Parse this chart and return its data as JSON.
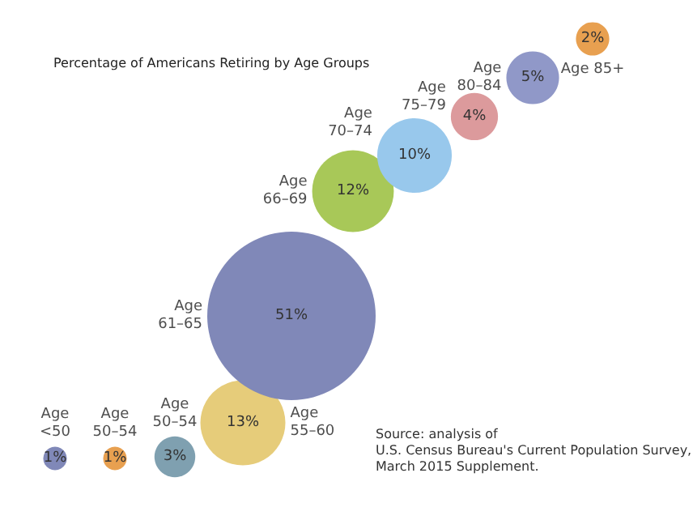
{
  "chart_data": {
    "type": "other",
    "title": "Percentage of Americans Retiring by Age Groups",
    "categories": [
      "Age\n<50",
      "Age\n50–54",
      "Age\n50–54",
      "Age\n55–60",
      "Age\n61–65",
      "Age\n66–69",
      "Age\n70–74",
      "Age\n75–79",
      "Age\n80–84",
      "Age 85+"
    ],
    "values": [
      1,
      1,
      3,
      13,
      51,
      12,
      10,
      4,
      5,
      2
    ],
    "value_labels": [
      "1%",
      "1%",
      "3%",
      "13%",
      "51%",
      "12%",
      "10%",
      "4%",
      "5%",
      "2%"
    ],
    "colors": [
      "#8088b8",
      "#e8a050",
      "#7fa0b0",
      "#e6cc7a",
      "#8088b8",
      "#a8c858",
      "#98c8ec",
      "#dc9a9c",
      "#9098c8",
      "#e8a050"
    ],
    "annotations": [
      "Source: analysis of\nU.S. Census Bureau's Current Population Survey,\nMarch 2015 Supplement."
    ]
  }
}
